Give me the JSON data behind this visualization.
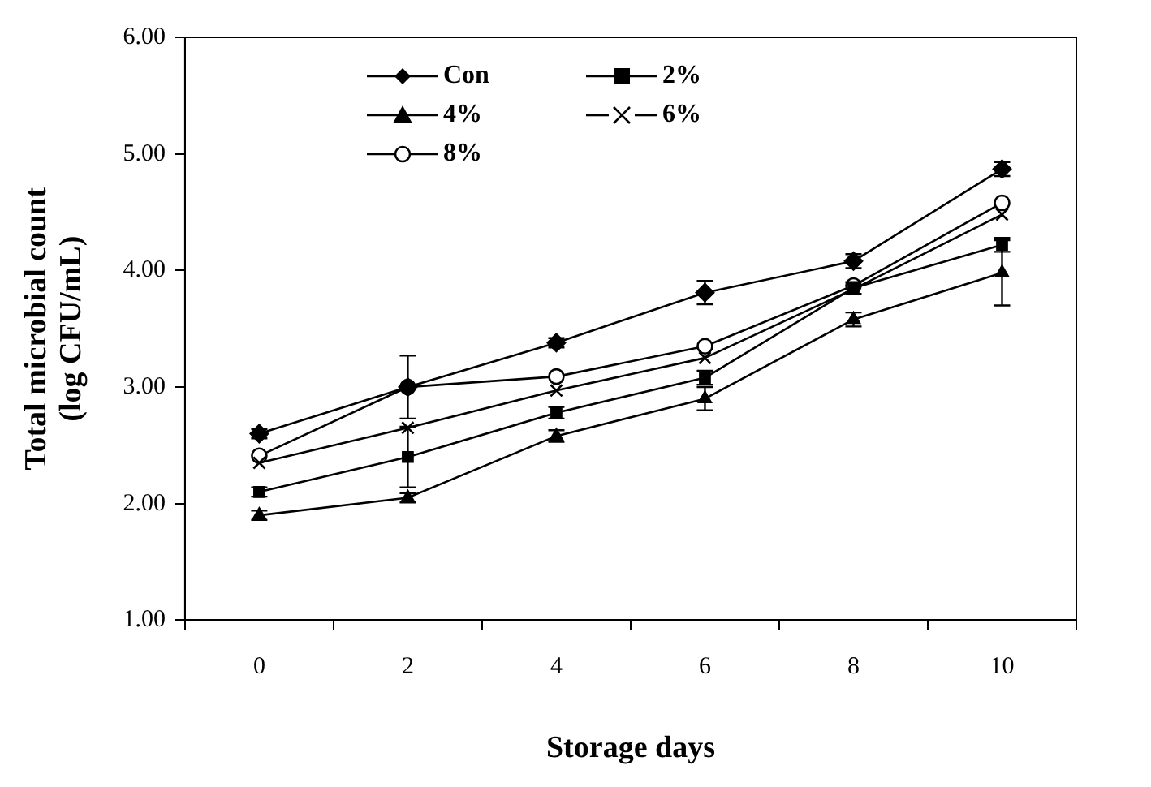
{
  "chart_data": {
    "type": "line",
    "xlabel": "Storage days",
    "ylabel": "Total microbial count (log CFU/mL)",
    "categories": [
      "0",
      "2",
      "4",
      "6",
      "8",
      "10"
    ],
    "ylim": [
      1,
      6
    ],
    "yticks": [
      {
        "value": 1,
        "label": "1.00"
      },
      {
        "value": 2,
        "label": "2.00"
      },
      {
        "value": 3,
        "label": "3.00"
      },
      {
        "value": 4,
        "label": "4.00"
      },
      {
        "value": 5,
        "label": "5.00"
      },
      {
        "value": 6,
        "label": "6.00"
      }
    ],
    "grid": false,
    "legend": "top left",
    "line_style": "solid",
    "series": [
      {
        "name": "Con",
        "color": "#000000",
        "marker": "diamond",
        "values": [
          2.6,
          3.0,
          3.38,
          3.81,
          4.08,
          4.87
        ],
        "errors": [
          0.04,
          0.27,
          0.04,
          0.1,
          0.06,
          0.06
        ]
      },
      {
        "name": "2%",
        "color": "#000000",
        "marker": "square",
        "values": [
          2.1,
          2.4,
          2.78,
          3.08,
          3.85,
          4.22
        ],
        "errors": [
          0.04,
          0.26,
          0.05,
          0.06,
          0.05,
          0.06
        ]
      },
      {
        "name": "4%",
        "color": "#000000",
        "marker": "triangle",
        "values": [
          1.9,
          2.05,
          2.58,
          2.9,
          3.58,
          3.98
        ],
        "errors": [
          0.04,
          0.04,
          0.05,
          0.1,
          0.06,
          0.28
        ]
      },
      {
        "name": "6%",
        "color": "#000000",
        "marker": "cross",
        "values": [
          2.35,
          2.65,
          2.97,
          3.25,
          3.84,
          4.48
        ]
      },
      {
        "name": "8%",
        "color": "#000000",
        "marker": "circle",
        "values": [
          2.41,
          3.0,
          3.09,
          3.35,
          3.87,
          4.58
        ]
      }
    ]
  }
}
